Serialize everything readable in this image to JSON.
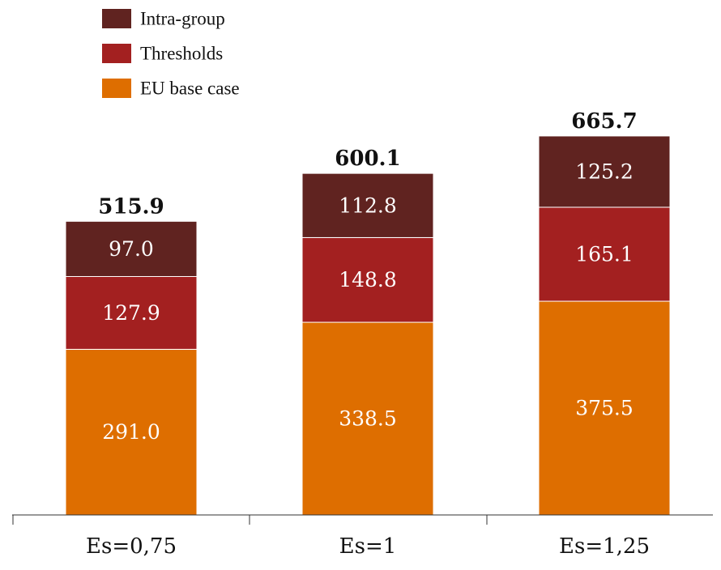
{
  "chart_data": {
    "type": "bar",
    "stacked": true,
    "categories": [
      "Es=0,75",
      "Es=1",
      "Es=1,25"
    ],
    "series": [
      {
        "name": "EU base case",
        "values": [
          291.0,
          338.5,
          375.5
        ],
        "labels": [
          "291.0",
          "338.5",
          "375.5"
        ],
        "color": "#DE6E00"
      },
      {
        "name": "Thresholds",
        "values": [
          127.9,
          148.8,
          165.1
        ],
        "labels": [
          "127.9",
          "148.8",
          "165.1"
        ],
        "color": "#A32020"
      },
      {
        "name": "Intra-group",
        "values": [
          97.0,
          112.8,
          125.2
        ],
        "labels": [
          "97.0",
          "112.8",
          "125.2"
        ],
        "color": "#602320"
      }
    ],
    "totals": [
      "515.9",
      "600.1",
      "665.7"
    ],
    "legend_order": [
      2,
      1,
      0
    ],
    "legend_position": "top-left",
    "title": "",
    "xlabel": "",
    "ylabel": "",
    "ylim": [
      0,
      700
    ],
    "grid": false
  }
}
